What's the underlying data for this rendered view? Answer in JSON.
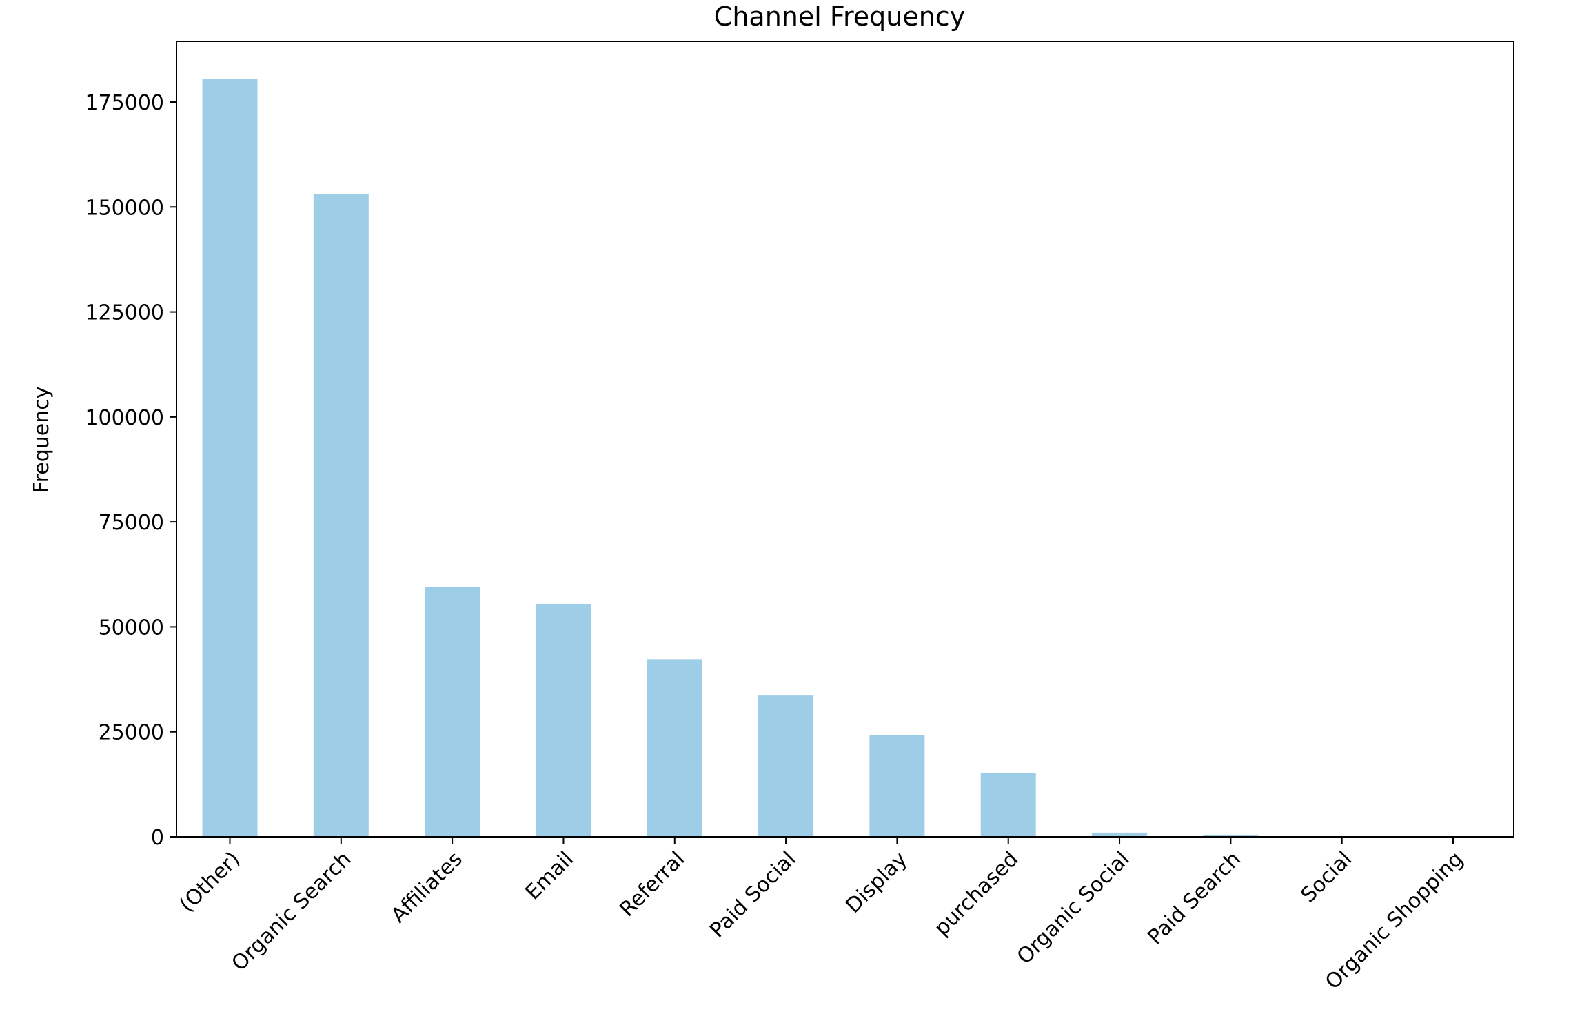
{
  "chart_data": {
    "type": "bar",
    "title": "Channel Frequency",
    "xlabel": "",
    "ylabel": "Frequency",
    "categories": [
      "(Other)",
      "Organic Search",
      "Affiliates",
      "Email",
      "Referral",
      "Paid Social",
      "Display",
      "purchased",
      "Organic Social",
      "Paid Search",
      "Social",
      "Organic Shopping"
    ],
    "values": [
      180500,
      153000,
      59500,
      55500,
      42300,
      33800,
      24300,
      15200,
      1000,
      500,
      60,
      30
    ],
    "ylim": [
      0,
      190000
    ],
    "yticks": [
      0,
      25000,
      50000,
      75000,
      100000,
      125000,
      150000,
      175000
    ],
    "ytick_labels": [
      "0",
      "25000",
      "50000",
      "75000",
      "100000",
      "125000",
      "150000",
      "175000"
    ],
    "bar_color": "#9ecde8",
    "grid": false,
    "legend": "none"
  }
}
